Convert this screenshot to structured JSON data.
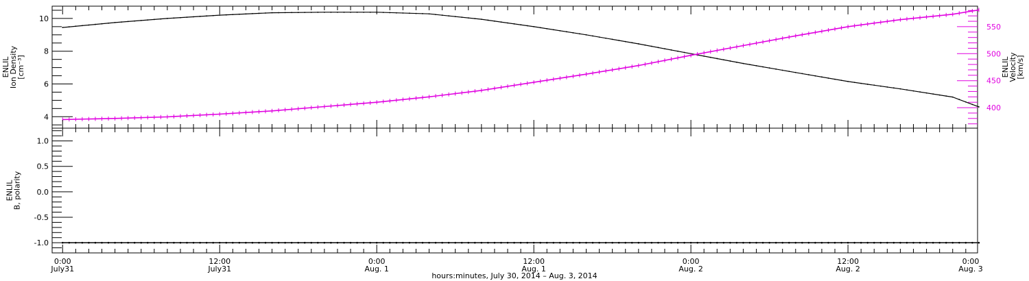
{
  "chart_data": [
    {
      "type": "line",
      "panel": "top",
      "ylabel_left": [
        "ENLIL",
        "Ion Density",
        "[cm⁻³]"
      ],
      "ylabel_right": [
        "ENLIL",
        "Velocity",
        "[km/s]"
      ],
      "ylim_left": [
        3.3,
        10.75
      ],
      "ylim_right": [
        362,
        588
      ],
      "yticks_left": [
        4,
        6,
        8,
        10
      ],
      "yticks_right": [
        400,
        450,
        500,
        550
      ],
      "grid": false,
      "series": [
        {
          "name": "Ion Density",
          "axis": "left",
          "color": "#000000",
          "x_hours": [
            0,
            4,
            8,
            12,
            16,
            20,
            24,
            28,
            32,
            36,
            40,
            44,
            48,
            52,
            56,
            60,
            64,
            68,
            70
          ],
          "values": [
            9.45,
            9.75,
            10.0,
            10.2,
            10.35,
            10.38,
            10.38,
            10.28,
            9.95,
            9.5,
            9.0,
            8.45,
            7.85,
            7.25,
            6.7,
            6.15,
            5.7,
            5.2,
            4.6
          ]
        },
        {
          "name": "Velocity",
          "axis": "right",
          "color": "#e000e0",
          "x_hours": [
            0,
            4,
            8,
            12,
            16,
            20,
            24,
            28,
            32,
            36,
            40,
            44,
            48,
            52,
            56,
            60,
            64,
            68,
            70
          ],
          "values": [
            378,
            380,
            383,
            388,
            394,
            402,
            410,
            420,
            432,
            447,
            462,
            478,
            497,
            515,
            533,
            550,
            563,
            573,
            581
          ]
        }
      ]
    },
    {
      "type": "scatter",
      "panel": "bottom",
      "ylabel": [
        "ENLIL",
        "B, polarity"
      ],
      "ylim": [
        -1.2,
        1.25
      ],
      "yticks": [
        -1.0,
        -0.5,
        0.0,
        0.5,
        1.0
      ],
      "grid": false,
      "series": [
        {
          "name": "B, polarity",
          "color": "#000000",
          "x_hours": [
            0,
            70
          ],
          "values": [
            -1.0,
            -1.0
          ]
        }
      ]
    }
  ],
  "x_axis": {
    "xlim_hours": [
      -0.8,
      69.9
    ],
    "xticks": [
      {
        "h": 0,
        "time": "0:00",
        "date": "July31"
      },
      {
        "h": 12,
        "time": "12:00",
        "date": "July31"
      },
      {
        "h": 24,
        "time": "0:00",
        "date": "Aug. 1"
      },
      {
        "h": 36,
        "time": "12:00",
        "date": "Aug. 1"
      },
      {
        "h": 48,
        "time": "0:00",
        "date": "Aug. 2"
      },
      {
        "h": 60,
        "time": "12:00",
        "date": "Aug. 2"
      },
      {
        "h": 72,
        "time": "0:00",
        "date": "Aug. 3"
      }
    ],
    "xlabel": "hours:minutes, July 30, 2014 – Aug.  3, 2014"
  },
  "colors": {
    "density": "#000000",
    "velocity": "#e000e0"
  }
}
